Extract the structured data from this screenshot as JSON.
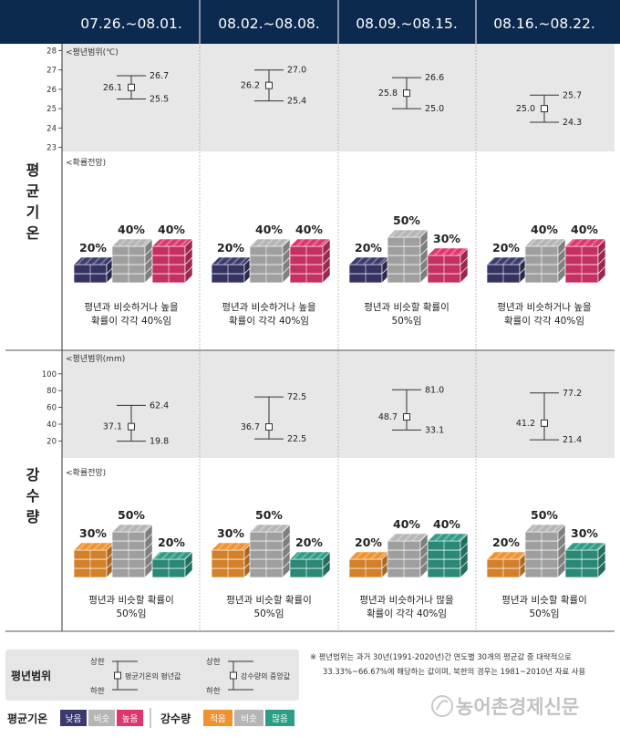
{
  "header": {
    "weeks": [
      "07.26.~08.01.",
      "08.02.~08.08.",
      "08.09.~08.15.",
      "08.16.~08.22."
    ]
  },
  "side_labels": {
    "temperature": [
      "평",
      "균",
      "기",
      "온"
    ],
    "precipitation": [
      "강",
      "수",
      "량"
    ]
  },
  "chart_data": [
    {
      "type": "range",
      "title": "평균기온 평년범위",
      "ylabel": "<평년범위(℃)",
      "ylim": [
        23,
        28
      ],
      "yticks": [
        23,
        24,
        25,
        26,
        27,
        28
      ],
      "categories": [
        "07.26.~08.01.",
        "08.02.~08.08.",
        "08.09.~08.15.",
        "08.16.~08.22."
      ],
      "series": [
        {
          "name": "상한",
          "values": [
            26.7,
            27.0,
            26.6,
            25.7
          ]
        },
        {
          "name": "평년값",
          "values": [
            26.1,
            26.2,
            25.8,
            25.0
          ]
        },
        {
          "name": "하한",
          "values": [
            25.5,
            25.4,
            25.0,
            24.3
          ]
        }
      ]
    },
    {
      "type": "bar",
      "title": "평균기온 확률전망",
      "ylabel": "<확률전망)",
      "categories": [
        "07.26.~08.01.",
        "08.02.~08.08.",
        "08.09.~08.15.",
        "08.16.~08.22."
      ],
      "series": [
        {
          "name": "낮음",
          "values": [
            20,
            20,
            20,
            20
          ]
        },
        {
          "name": "비슷",
          "values": [
            40,
            40,
            50,
            40
          ]
        },
        {
          "name": "높음",
          "values": [
            40,
            40,
            30,
            40
          ]
        }
      ],
      "captions": [
        [
          "평년과 비슷하거나 높을",
          "확률이 각각 40%임"
        ],
        [
          "평년과 비슷하거나 높을",
          "확률이 각각 40%임"
        ],
        [
          "평년과 비슷할 확률이",
          "50%임"
        ],
        [
          "평년과 비슷하거나 높을",
          "확률이 각각 40%임"
        ]
      ]
    },
    {
      "type": "range",
      "title": "강수량 평년범위",
      "ylabel": "<평년범위(mm)",
      "ylim": [
        10,
        100
      ],
      "yticks": [
        20,
        40,
        60,
        80,
        100
      ],
      "categories": [
        "07.26.~08.01.",
        "08.02.~08.08.",
        "08.09.~08.15.",
        "08.16.~08.22."
      ],
      "series": [
        {
          "name": "상한",
          "values": [
            62.4,
            72.5,
            81.0,
            77.2
          ]
        },
        {
          "name": "중앙값",
          "values": [
            37.1,
            36.7,
            48.7,
            41.2
          ]
        },
        {
          "name": "하한",
          "values": [
            19.8,
            22.5,
            33.1,
            21.4
          ]
        }
      ]
    },
    {
      "type": "bar",
      "title": "강수량 확률전망",
      "ylabel": "<확률전망)",
      "categories": [
        "07.26.~08.01.",
        "08.02.~08.08.",
        "08.09.~08.15.",
        "08.16.~08.22."
      ],
      "series": [
        {
          "name": "적음",
          "values": [
            30,
            30,
            20,
            20
          ]
        },
        {
          "name": "비슷",
          "values": [
            50,
            50,
            40,
            50
          ]
        },
        {
          "name": "많음",
          "values": [
            20,
            20,
            40,
            30
          ]
        }
      ],
      "captions": [
        [
          "평년과 비슷할 확률이",
          "50%임"
        ],
        [
          "평년과 비슷할 확률이",
          "50%임"
        ],
        [
          "평년과 비슷하거나 많을",
          "확률이 각각 40%임"
        ],
        [
          "평년과 비슷할 확률이",
          "50%임"
        ]
      ]
    }
  ],
  "colors": {
    "header_bg": "#0c2a4f",
    "temp_low": "#3b3a6e",
    "temp_similar": "#b5b5b5",
    "temp_high": "#e03670",
    "rain_low": "#f0922f",
    "rain_similar": "#b5b5b5",
    "rain_high": "#2f9c86",
    "band_bg": "#e7e7e7"
  },
  "legend": {
    "range_title": "평년범위",
    "upper": "상한",
    "lower": "하한",
    "temp_mean": "평균기온의 평년값",
    "rain_median": "강수량의 중앙값",
    "temp_title": "평균기온",
    "temp_items": [
      "낮음",
      "비슷",
      "높음"
    ],
    "rain_title": "강수량",
    "rain_items": [
      "적음",
      "비슷",
      "많음"
    ]
  },
  "note": {
    "line1": "※  평년범위는 과거 30년(1991-2020년)간 연도별 30개의 평균값 중 대략적으로",
    "line2": "33.33%~66.67%에 해당하는 값이며, 북한의 경우는 1981~2010년 자료 사용"
  },
  "watermark": "농어촌경제신문"
}
